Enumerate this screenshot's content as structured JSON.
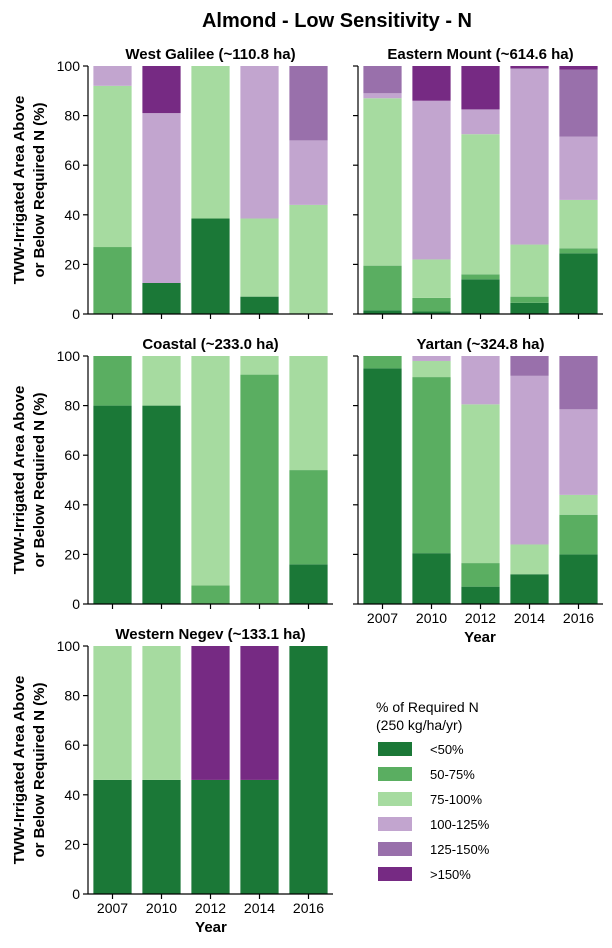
{
  "figure": {
    "title": "Almond - Low Sensitivity - N",
    "ylabel_line1": "TWW-Irrigated Area Above",
    "ylabel_line2": "or Below Required N (%)",
    "xlabel": "Year"
  },
  "legend": {
    "title_line1": "% of Required N",
    "title_line2": "(250 kg/ha/yr)",
    "position": "lower-right empty panel"
  },
  "colors": {
    "<50%": "#1b7837",
    "50-75%": "#5aae61",
    "75-100%": "#a6dba0",
    "100-125%": "#c2a5cf",
    "125-150%": "#9970ab",
    ">150%": "#762a83"
  },
  "chart_data": [
    {
      "type": "bar",
      "stacked": true,
      "title": "West Galilee (~110.8 ha)",
      "categories": [
        "2007",
        "2010",
        "2012",
        "2014",
        "2016"
      ],
      "ylim": [
        0,
        100
      ],
      "yticks": [
        0,
        20,
        40,
        60,
        80,
        100
      ],
      "series": [
        {
          "name": "<50%",
          "values": [
            0,
            12.5,
            38.5,
            7,
            0
          ]
        },
        {
          "name": "50-75%",
          "values": [
            27,
            0,
            0,
            0,
            0
          ]
        },
        {
          "name": "75-100%",
          "values": [
            65,
            0,
            61.5,
            31.5,
            44
          ]
        },
        {
          "name": "100-125%",
          "values": [
            8,
            68.5,
            0,
            61.5,
            26
          ]
        },
        {
          "name": "125-150%",
          "values": [
            0,
            0,
            0,
            0,
            30
          ]
        },
        {
          "name": ">150%",
          "values": [
            0,
            19,
            0,
            0,
            0
          ]
        }
      ]
    },
    {
      "type": "bar",
      "stacked": true,
      "title": "Eastern Mount (~614.6 ha)",
      "categories": [
        "2007",
        "2010",
        "2012",
        "2014",
        "2016"
      ],
      "ylim": [
        0,
        100
      ],
      "yticks": [
        0,
        20,
        40,
        60,
        80,
        100
      ],
      "series": [
        {
          "name": "<50%",
          "values": [
            1.5,
            1,
            14,
            4.5,
            24.5
          ]
        },
        {
          "name": "50-75%",
          "values": [
            18,
            5.5,
            2,
            2.5,
            2
          ]
        },
        {
          "name": "75-100%",
          "values": [
            67.5,
            15.5,
            56.5,
            21,
            19.5
          ]
        },
        {
          "name": "100-125%",
          "values": [
            2,
            64,
            10,
            71,
            25.5
          ]
        },
        {
          "name": "125-150%",
          "values": [
            11,
            0,
            0,
            0,
            27
          ]
        },
        {
          "name": ">150%",
          "values": [
            0,
            14,
            17.5,
            1,
            1.5
          ]
        }
      ]
    },
    {
      "type": "bar",
      "stacked": true,
      "title": "Coastal (~233.0 ha)",
      "categories": [
        "2007",
        "2010",
        "2012",
        "2014",
        "2016"
      ],
      "ylim": [
        0,
        100
      ],
      "yticks": [
        0,
        20,
        40,
        60,
        80,
        100
      ],
      "series": [
        {
          "name": "<50%",
          "values": [
            80,
            80,
            0,
            0,
            16
          ]
        },
        {
          "name": "50-75%",
          "values": [
            20,
            0,
            7.5,
            92.5,
            38
          ]
        },
        {
          "name": "75-100%",
          "values": [
            0,
            20,
            92.5,
            7.5,
            46
          ]
        },
        {
          "name": "100-125%",
          "values": [
            0,
            0,
            0,
            0,
            0
          ]
        },
        {
          "name": "125-150%",
          "values": [
            0,
            0,
            0,
            0,
            0
          ]
        },
        {
          "name": ">150%",
          "values": [
            0,
            0,
            0,
            0,
            0
          ]
        }
      ]
    },
    {
      "type": "bar",
      "stacked": true,
      "title": "Yartan (~324.8 ha)",
      "categories": [
        "2007",
        "2010",
        "2012",
        "2014",
        "2016"
      ],
      "ylim": [
        0,
        100
      ],
      "yticks": [
        0,
        20,
        40,
        60,
        80,
        100
      ],
      "series": [
        {
          "name": "<50%",
          "values": [
            95,
            20.5,
            7,
            12,
            20
          ]
        },
        {
          "name": "50-75%",
          "values": [
            5,
            71,
            9.5,
            0,
            16
          ]
        },
        {
          "name": "75-100%",
          "values": [
            0,
            6.5,
            64,
            12,
            8
          ]
        },
        {
          "name": "100-125%",
          "values": [
            0,
            2,
            19.5,
            68,
            34.5
          ]
        },
        {
          "name": "125-150%",
          "values": [
            0,
            0,
            0,
            8,
            21.5
          ]
        },
        {
          "name": ">150%",
          "values": [
            0,
            0,
            0,
            0,
            0
          ]
        }
      ]
    },
    {
      "type": "bar",
      "stacked": true,
      "title": "Western Negev (~133.1 ha)",
      "categories": [
        "2007",
        "2010",
        "2012",
        "2014",
        "2016"
      ],
      "ylim": [
        0,
        100
      ],
      "yticks": [
        0,
        20,
        40,
        60,
        80,
        100
      ],
      "series": [
        {
          "name": "<50%",
          "values": [
            46,
            46,
            46,
            46,
            100
          ]
        },
        {
          "name": "50-75%",
          "values": [
            0,
            0,
            0,
            0,
            0
          ]
        },
        {
          "name": "75-100%",
          "values": [
            54,
            54,
            0,
            0,
            0
          ]
        },
        {
          "name": "100-125%",
          "values": [
            0,
            0,
            0,
            0,
            0
          ]
        },
        {
          "name": "125-150%",
          "values": [
            0,
            0,
            0,
            0,
            0
          ]
        },
        {
          "name": ">150%",
          "values": [
            0,
            0,
            54,
            54,
            0
          ]
        }
      ]
    }
  ]
}
